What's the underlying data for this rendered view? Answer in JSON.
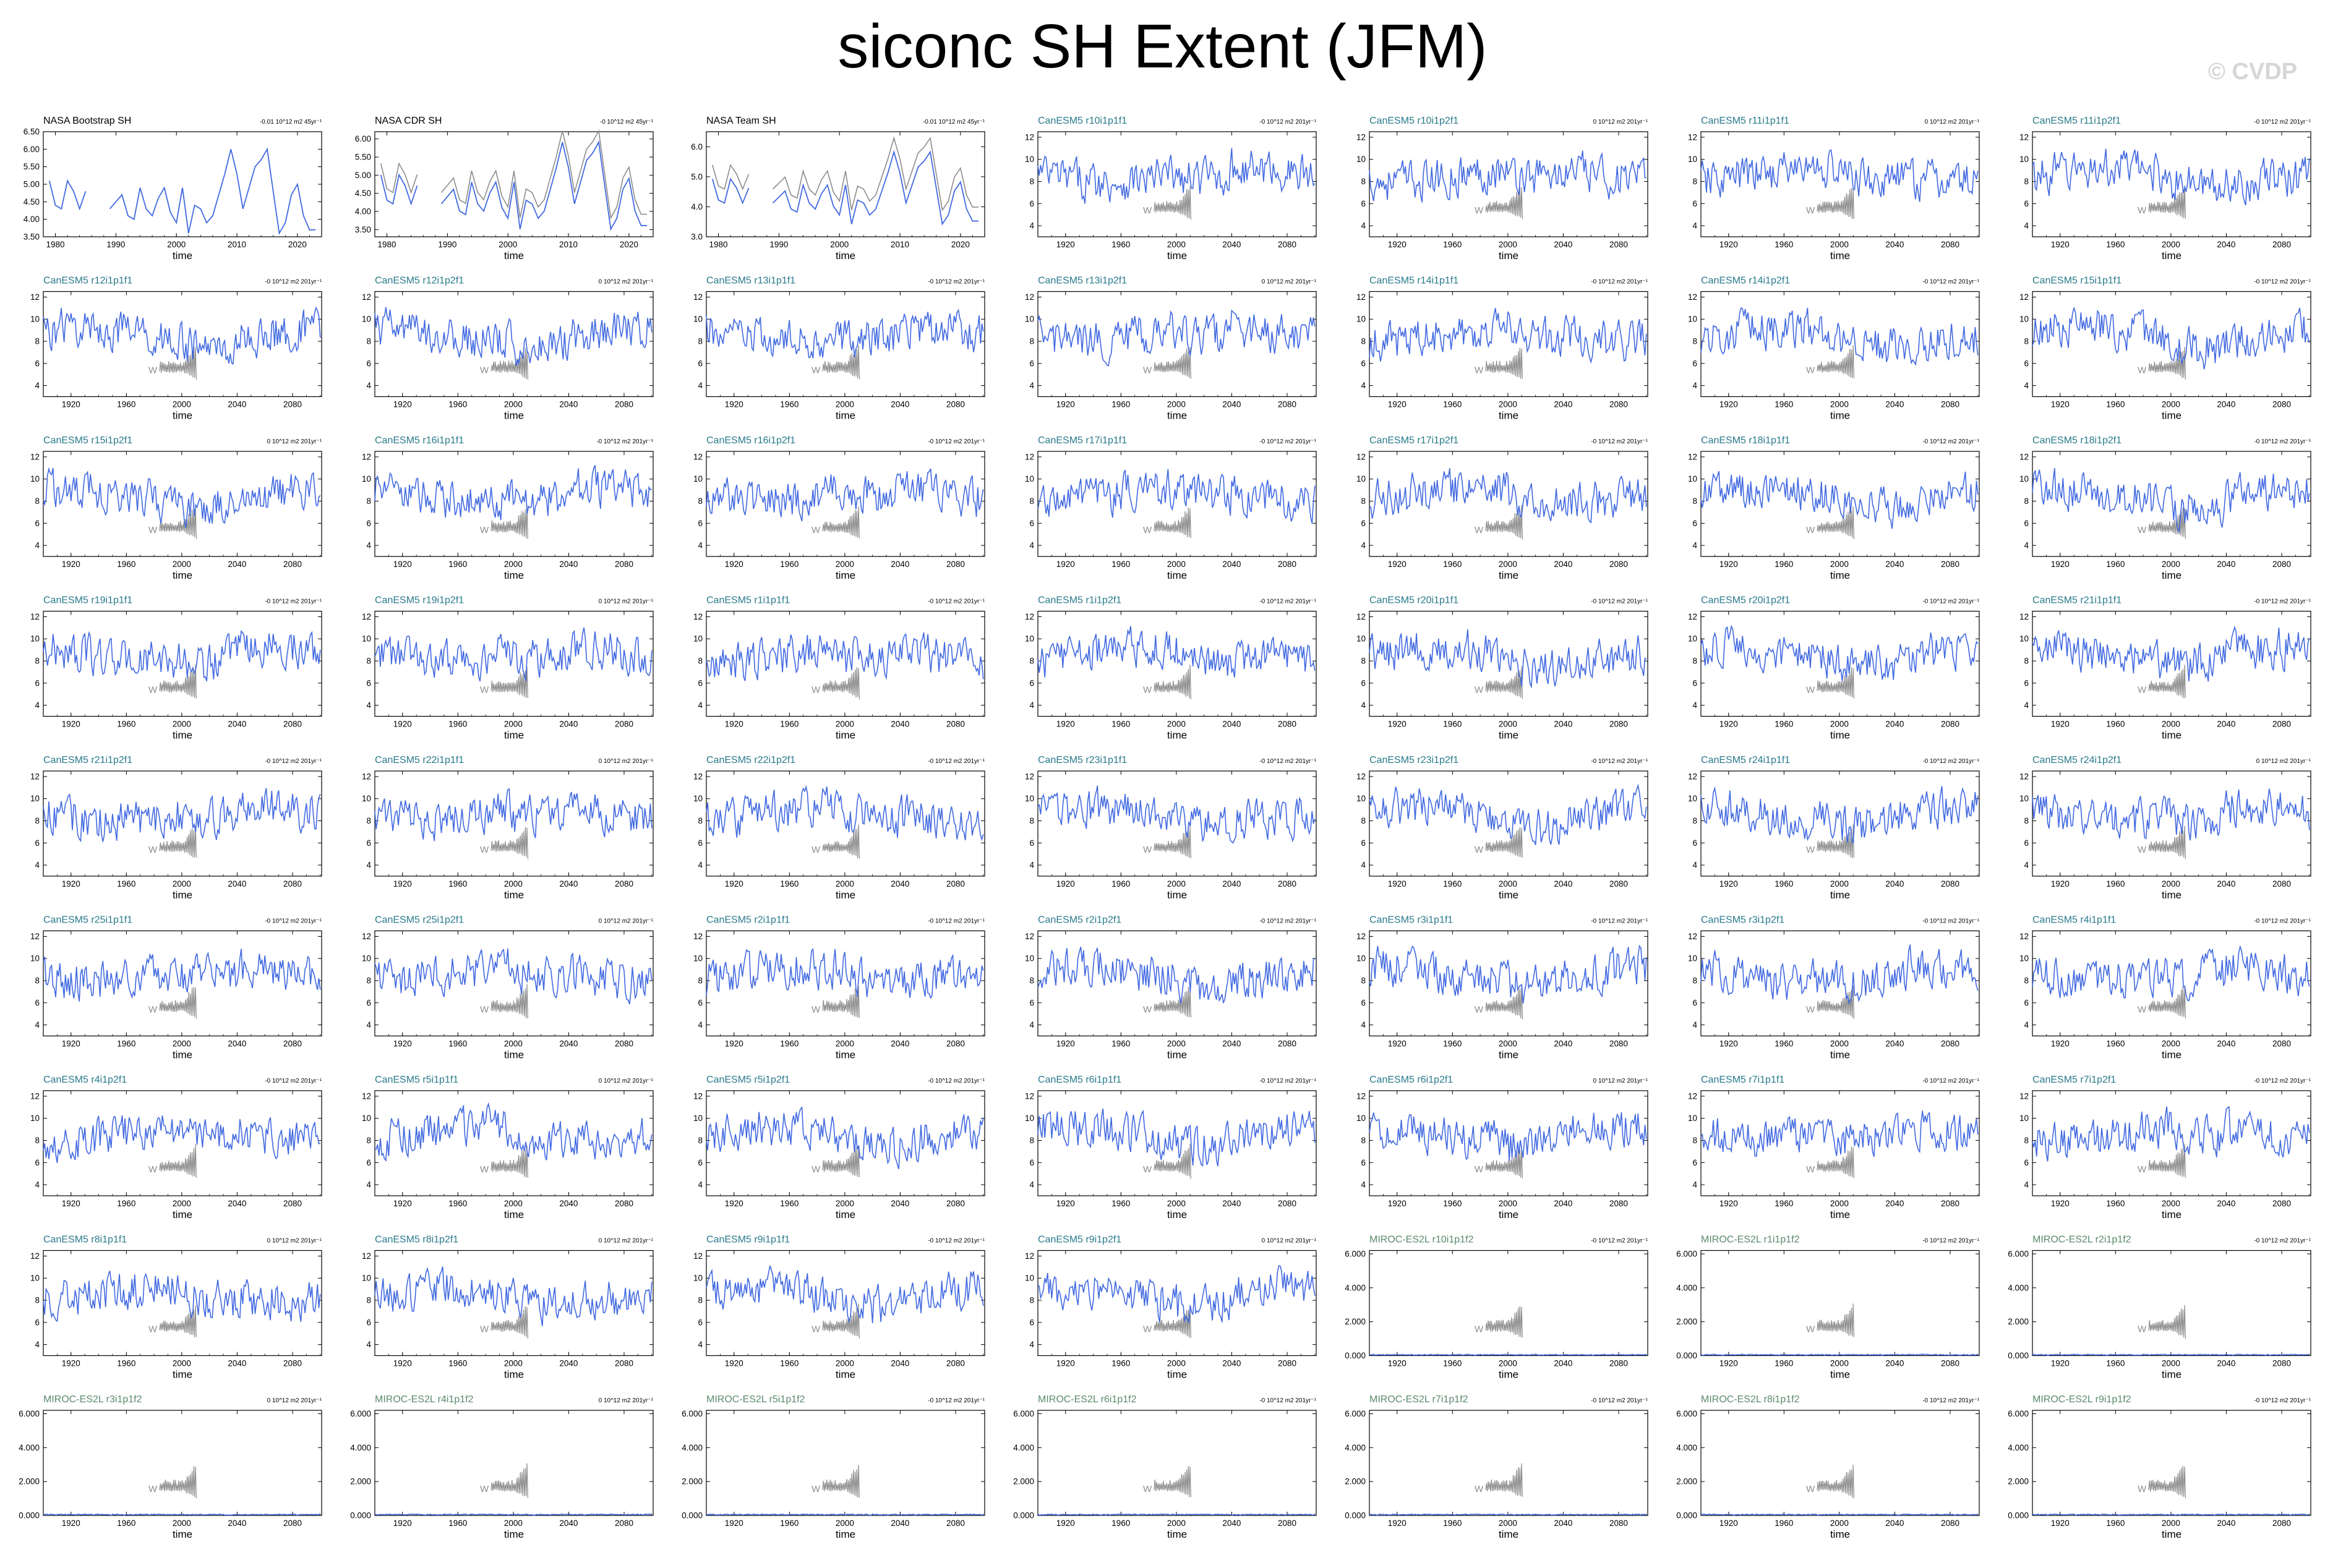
{
  "title": "siconc SH Extent (JFM)",
  "watermark": "© CVDP",
  "colors": {
    "sim_line": "#4169e1",
    "obs_line": "#4169e1",
    "obs_ref_line": "#8c8c8c",
    "canesm_title": "#2a7a8c",
    "miroc_title": "#5a8a6c",
    "obs_title": "#000000",
    "frame": "#000000",
    "inset": "#8c8c8c"
  },
  "chart_data": {
    "type": "line",
    "xlabel": "time",
    "panels": [
      {
        "title": "NASA Bootstrap SH",
        "trend": "-0.01 10^12 m2 45yr⁻¹",
        "group": "obs",
        "xlim": [
          1978,
          2024
        ],
        "xticks": [
          1980,
          1990,
          2000,
          2010,
          2020
        ],
        "ylim": [
          3.5,
          6.5
        ],
        "yticks": [
          "3.50",
          "4.00",
          "4.50",
          "5.00",
          "5.50",
          "6.00",
          "6.50"
        ],
        "x": [
          1979,
          1980,
          1981,
          1982,
          1983,
          1984,
          1985,
          1986,
          1987,
          1988,
          1989,
          1990,
          1991,
          1992,
          1993,
          1994,
          1995,
          1996,
          1997,
          1998,
          1999,
          2000,
          2001,
          2002,
          2003,
          2004,
          2005,
          2006,
          2007,
          2008,
          2009,
          2010,
          2011,
          2012,
          2013,
          2014,
          2015,
          2016,
          2017,
          2018,
          2019,
          2020,
          2021,
          2022,
          2023
        ],
        "y": [
          5.1,
          4.4,
          4.3,
          5.1,
          4.8,
          4.3,
          4.8,
          null,
          4.7,
          null,
          4.3,
          4.5,
          4.7,
          4.1,
          4.0,
          4.9,
          4.3,
          4.1,
          4.6,
          4.9,
          4.2,
          3.9,
          4.9,
          3.6,
          4.4,
          4.3,
          3.9,
          4.1,
          4.7,
          5.3,
          6.0,
          5.3,
          4.3,
          4.9,
          5.5,
          5.7,
          6.0,
          4.8,
          3.6,
          3.9,
          4.7,
          5.0,
          4.1,
          3.7,
          3.7
        ]
      },
      {
        "title": "NASA CDR SH",
        "trend": "-0 10^12 m2 45yr⁻¹",
        "group": "obs",
        "xlim": [
          1978,
          2024
        ],
        "xticks": [
          1980,
          1990,
          2000,
          2010,
          2020
        ],
        "ylim": [
          3.3,
          6.2
        ],
        "yticks": [
          "3.50",
          "4.00",
          "4.50",
          "5.00",
          "5.50",
          "6.00"
        ],
        "obs_offset": 0.18,
        "x_ref": "panel_0"
      },
      {
        "title": "NASA Team SH",
        "trend": "-0.01 10^12 m2 45yr⁻¹",
        "group": "obs",
        "xlim": [
          1978,
          2024
        ],
        "xticks": [
          1980,
          1990,
          2000,
          2010,
          2020
        ],
        "ylim": [
          3.0,
          6.5
        ],
        "yticks": [
          "3.0",
          "4.0",
          "5.0",
          "6.0"
        ],
        "obs_offset": 0.35,
        "x_ref": "panel_0"
      },
      {
        "title": "CanESM5 r10i1p1f1",
        "trend": "-0 10^12 m2 201yr⁻¹",
        "group": "canesm"
      },
      {
        "title": "CanESM5 r10i1p2f1",
        "trend": "0 10^12 m2 201yr⁻¹",
        "group": "canesm"
      },
      {
        "title": "CanESM5 r11i1p1f1",
        "trend": "0 10^12 m2 201yr⁻¹",
        "group": "canesm"
      },
      {
        "title": "CanESM5 r11i1p2f1",
        "trend": "-0 10^12 m2 201yr⁻¹",
        "group": "canesm"
      },
      {
        "title": "CanESM5 r12i1p1f1",
        "trend": "-0 10^12 m2 201yr⁻¹",
        "group": "canesm"
      },
      {
        "title": "CanESM5 r12i1p2f1",
        "trend": "0 10^12 m2 201yr⁻¹",
        "group": "canesm"
      },
      {
        "title": "CanESM5 r13i1p1f1",
        "trend": "-0 10^12 m2 201yr⁻¹",
        "group": "canesm"
      },
      {
        "title": "CanESM5 r13i1p2f1",
        "trend": "0 10^12 m2 201yr⁻¹",
        "group": "canesm"
      },
      {
        "title": "CanESM5 r14i1p1f1",
        "trend": "-0 10^12 m2 201yr⁻¹",
        "group": "canesm"
      },
      {
        "title": "CanESM5 r14i1p2f1",
        "trend": "-0 10^12 m2 201yr⁻¹",
        "group": "canesm"
      },
      {
        "title": "CanESM5 r15i1p1f1",
        "trend": "-0 10^12 m2 201yr⁻¹",
        "group": "canesm"
      },
      {
        "title": "CanESM5 r15i1p2f1",
        "trend": "0 10^12 m2 201yr⁻¹",
        "group": "canesm"
      },
      {
        "title": "CanESM5 r16i1p1f1",
        "trend": "-0 10^12 m2 201yr⁻¹",
        "group": "canesm"
      },
      {
        "title": "CanESM5 r16i1p2f1",
        "trend": "-0 10^12 m2 201yr⁻¹",
        "group": "canesm"
      },
      {
        "title": "CanESM5 r17i1p1f1",
        "trend": "-0 10^12 m2 201yr⁻¹",
        "group": "canesm"
      },
      {
        "title": "CanESM5 r17i1p2f1",
        "trend": "-0 10^12 m2 201yr⁻¹",
        "group": "canesm"
      },
      {
        "title": "CanESM5 r18i1p1f1",
        "trend": "-0 10^12 m2 201yr⁻¹",
        "group": "canesm"
      },
      {
        "title": "CanESM5 r18i1p2f1",
        "trend": "-0 10^12 m2 201yr⁻¹",
        "group": "canesm"
      },
      {
        "title": "CanESM5 r19i1p1f1",
        "trend": "-0 10^12 m2 201yr⁻¹",
        "group": "canesm"
      },
      {
        "title": "CanESM5 r19i1p2f1",
        "trend": "0 10^12 m2 201yr⁻¹",
        "group": "canesm"
      },
      {
        "title": "CanESM5 r1i1p1f1",
        "trend": "-0 10^12 m2 201yr⁻¹",
        "group": "canesm"
      },
      {
        "title": "CanESM5 r1i1p2f1",
        "trend": "-0 10^12 m2 201yr⁻¹",
        "group": "canesm"
      },
      {
        "title": "CanESM5 r20i1p1f1",
        "trend": "-0 10^12 m2 201yr⁻¹",
        "group": "canesm"
      },
      {
        "title": "CanESM5 r20i1p2f1",
        "trend": "-0 10^12 m2 201yr⁻¹",
        "group": "canesm"
      },
      {
        "title": "CanESM5 r21i1p1f1",
        "trend": "-0 10^12 m2 201yr⁻¹",
        "group": "canesm"
      },
      {
        "title": "CanESM5 r21i1p2f1",
        "trend": "-0 10^12 m2 201yr⁻¹",
        "group": "canesm"
      },
      {
        "title": "CanESM5 r22i1p1f1",
        "trend": "0 10^12 m2 201yr⁻¹",
        "group": "canesm"
      },
      {
        "title": "CanESM5 r22i1p2f1",
        "trend": "-0 10^12 m2 201yr⁻¹",
        "group": "canesm"
      },
      {
        "title": "CanESM5 r23i1p1f1",
        "trend": "-0 10^12 m2 201yr⁻¹",
        "group": "canesm"
      },
      {
        "title": "CanESM5 r23i1p2f1",
        "trend": "-0 10^12 m2 201yr⁻¹",
        "group": "canesm"
      },
      {
        "title": "CanESM5 r24i1p1f1",
        "trend": "-0 10^12 m2 201yr⁻¹",
        "group": "canesm"
      },
      {
        "title": "CanESM5 r24i1p2f1",
        "trend": "0 10^12 m2 201yr⁻¹",
        "group": "canesm"
      },
      {
        "title": "CanESM5 r25i1p1f1",
        "trend": "-0 10^12 m2 201yr⁻¹",
        "group": "canesm"
      },
      {
        "title": "CanESM5 r25i1p2f1",
        "trend": "0 10^12 m2 201yr⁻¹",
        "group": "canesm"
      },
      {
        "title": "CanESM5 r2i1p1f1",
        "trend": "-0 10^12 m2 201yr⁻¹",
        "group": "canesm"
      },
      {
        "title": "CanESM5 r2i1p2f1",
        "trend": "-0 10^12 m2 201yr⁻¹",
        "group": "canesm"
      },
      {
        "title": "CanESM5 r3i1p1f1",
        "trend": "-0 10^12 m2 201yr⁻¹",
        "group": "canesm"
      },
      {
        "title": "CanESM5 r3i1p2f1",
        "trend": "-0 10^12 m2 201yr⁻¹",
        "group": "canesm"
      },
      {
        "title": "CanESM5 r4i1p1f1",
        "trend": "-0 10^12 m2 201yr⁻¹",
        "group": "canesm"
      },
      {
        "title": "CanESM5 r4i1p2f1",
        "trend": "-0 10^12 m2 201yr⁻¹",
        "group": "canesm"
      },
      {
        "title": "CanESM5 r5i1p1f1",
        "trend": "0 10^12 m2 201yr⁻¹",
        "group": "canesm"
      },
      {
        "title": "CanESM5 r5i1p2f1",
        "trend": "-0 10^12 m2 201yr⁻¹",
        "group": "canesm"
      },
      {
        "title": "CanESM5 r6i1p1f1",
        "trend": "-0 10^12 m2 201yr⁻¹",
        "group": "canesm"
      },
      {
        "title": "CanESM5 r6i1p2f1",
        "trend": "0 10^12 m2 201yr⁻¹",
        "group": "canesm"
      },
      {
        "title": "CanESM5 r7i1p1f1",
        "trend": "-0 10^12 m2 201yr⁻¹",
        "group": "canesm"
      },
      {
        "title": "CanESM5 r7i1p2f1",
        "trend": "-0 10^12 m2 201yr⁻¹",
        "group": "canesm"
      },
      {
        "title": "CanESM5 r8i1p1f1",
        "trend": "0 10^12 m2 201yr⁻¹",
        "group": "canesm"
      },
      {
        "title": "CanESM5 r8i1p2f1",
        "trend": "0 10^12 m2 201yr⁻¹",
        "group": "canesm"
      },
      {
        "title": "CanESM5 r9i1p1f1",
        "trend": "-0 10^12 m2 201yr⁻¹",
        "group": "canesm"
      },
      {
        "title": "CanESM5 r9i1p2f1",
        "trend": "0 10^12 m2 201yr⁻¹",
        "group": "canesm"
      },
      {
        "title": "MIROC-ES2L r10i1p1f2",
        "trend": "-0 10^12 m2 201yr⁻¹",
        "group": "miroc"
      },
      {
        "title": "MIROC-ES2L r1i1p1f2",
        "trend": "-0 10^12 m2 201yr⁻¹",
        "group": "miroc"
      },
      {
        "title": "MIROC-ES2L r2i1p1f2",
        "trend": "-0 10^12 m2 201yr⁻¹",
        "group": "miroc"
      },
      {
        "title": "MIROC-ES2L r3i1p1f2",
        "trend": "0 10^12 m2 201yr⁻¹",
        "group": "miroc"
      },
      {
        "title": "MIROC-ES2L r4i1p1f2",
        "trend": "0 10^12 m2 201yr⁻¹",
        "group": "miroc"
      },
      {
        "title": "MIROC-ES2L r5i1p1f2",
        "trend": "-0 10^12 m2 201yr⁻¹",
        "group": "miroc"
      },
      {
        "title": "MIROC-ES2L r6i1p1f2",
        "trend": "-0 10^12 m2 201yr⁻¹",
        "group": "miroc"
      },
      {
        "title": "MIROC-ES2L r7i1p1f2",
        "trend": "-0 10^12 m2 201yr⁻¹",
        "group": "miroc"
      },
      {
        "title": "MIROC-ES2L r8i1p1f2",
        "trend": "-0 10^12 m2 201yr⁻¹",
        "group": "miroc"
      },
      {
        "title": "MIROC-ES2L r9i1p1f2",
        "trend": "-0 10^12 m2 201yr⁻¹",
        "group": "miroc"
      }
    ],
    "canesm_axes": {
      "xlim": [
        1900,
        2101
      ],
      "xticks": [
        1920,
        1960,
        2000,
        2040,
        2080
      ],
      "ylim": [
        3,
        12.5
      ],
      "yticks": [
        "4",
        "6",
        "8",
        "10",
        "12"
      ]
    },
    "miroc_axes": {
      "xlim": [
        1900,
        2101
      ],
      "xticks": [
        1920,
        1960,
        2000,
        2040,
        2080
      ],
      "ylim": [
        0,
        6.2
      ],
      "yticks": [
        "0.000",
        "2.000",
        "4.000",
        "6.000"
      ],
      "level": 0.05
    },
    "canesm_level": 8.6,
    "inset_label": "W"
  }
}
